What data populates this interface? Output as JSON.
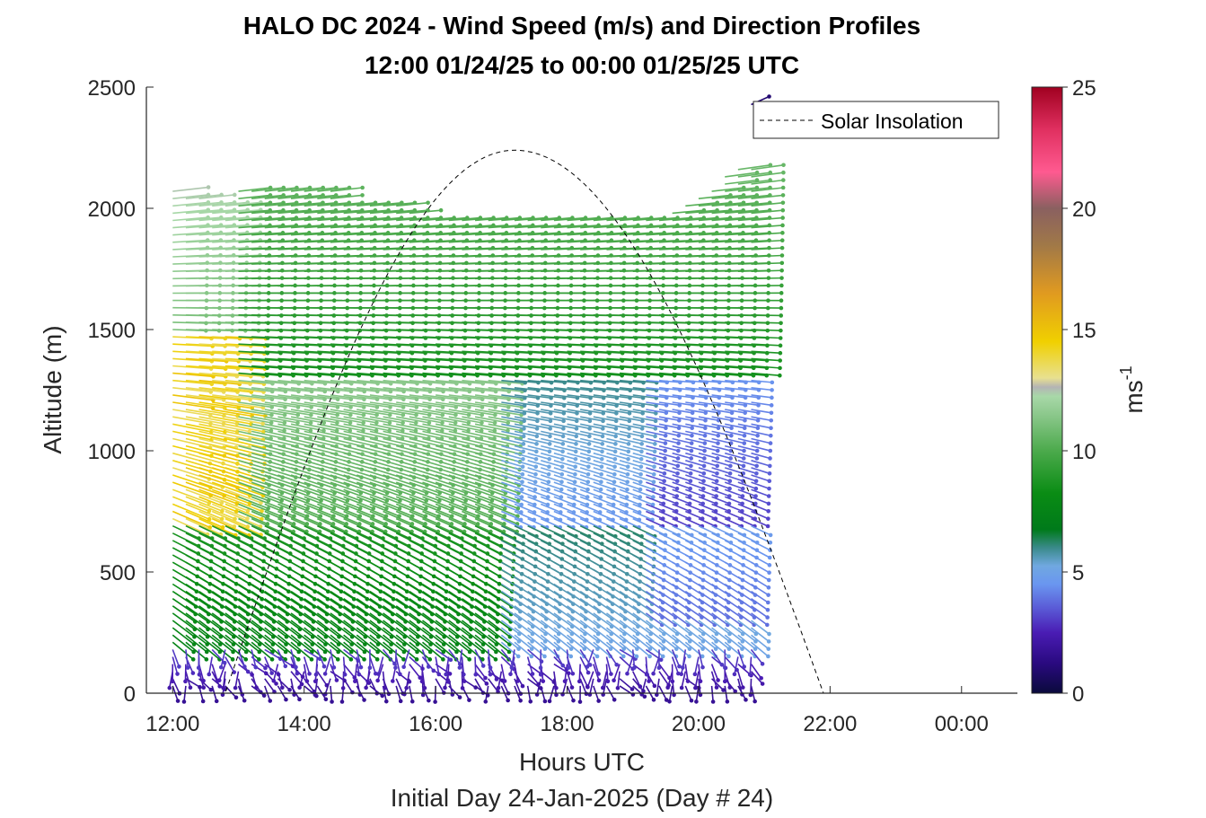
{
  "chart_data": {
    "type": "quiver",
    "title": "HALO DC 2024 - Wind Speed (m/s) and Direction Profiles",
    "subtitle": "12:00 01/24/25 to 00:00 01/25/25  UTC",
    "xlabel": "Hours UTC",
    "xlabel2": "Initial Day 24-Jan-2025 (Day # 24)",
    "ylabel": "Altitude (m)",
    "xlim": [
      11.6,
      24.85
    ],
    "ylim": [
      0,
      2500
    ],
    "x_ticks": [
      12,
      14,
      16,
      18,
      20,
      22,
      24
    ],
    "x_tick_labels": [
      "12:00",
      "14:00",
      "16:00",
      "18:00",
      "20:00",
      "22:00",
      "00:00"
    ],
    "y_ticks": [
      0,
      500,
      1000,
      1500,
      2000,
      2500
    ],
    "y_tick_labels": [
      "0",
      "500",
      "1000",
      "1500",
      "2000",
      "2500"
    ],
    "legend": {
      "entries": [
        "Solar Insolation"
      ],
      "placement": "top-right"
    },
    "colorbar": {
      "label": "ms",
      "label_superscript": "-1",
      "range": [
        0,
        25
      ],
      "ticks": [
        0,
        5,
        10,
        15,
        20,
        25
      ],
      "tick_labels": [
        "0",
        "5",
        "10",
        "15",
        "20",
        "25"
      ]
    },
    "profile_times": [
      12.0,
      12.2,
      12.4,
      12.6,
      12.8,
      13.0,
      13.2,
      13.4,
      13.6,
      13.8,
      14.0,
      14.2,
      14.4,
      14.6,
      14.8,
      15.0,
      15.2,
      15.4,
      15.6,
      15.8,
      16.0,
      16.2,
      16.4,
      16.6,
      16.8,
      17.0,
      17.2,
      17.4,
      17.6,
      17.8,
      18.0,
      18.2,
      18.4,
      18.6,
      18.8,
      19.0,
      19.2,
      19.4,
      19.6,
      19.8,
      20.0,
      20.2,
      20.4,
      20.6,
      20.8
    ],
    "altitude_bins_m": {
      "start": 30,
      "step": 30
    },
    "max_profile_altitude_m": [
      2090,
      2040,
      2040,
      2010,
      2010,
      2090,
      2090,
      2090,
      2090,
      2090,
      2090,
      2090,
      2090,
      2010,
      2010,
      2010,
      2010,
      2010,
      1980,
      1950,
      1950,
      1950,
      1950,
      1950,
      1950,
      1950,
      1950,
      1950,
      1950,
      1950,
      1950,
      1950,
      1950,
      1950,
      1950,
      1950,
      1950,
      1950,
      1980,
      2010,
      2040,
      2070,
      2130,
      2160,
      2160
    ],
    "isolated_vectors": [
      {
        "time": 20.8,
        "altitude_m": 2450,
        "speed_ms": 1
      }
    ],
    "wind_speed_summary": [
      {
        "altitude_range_m": [
          0,
          200
        ],
        "speed_ms": [
          1,
          4
        ],
        "direction": "from north / variable"
      },
      {
        "altitude_range_m": [
          200,
          700
        ],
        "speed_ms": [
          5,
          9
        ],
        "direction": "from north-northwest"
      },
      {
        "altitude_range_m": [
          700,
          1300
        ],
        "speed_ms": [
          3,
          11
        ],
        "direction": "from northwest"
      },
      {
        "altitude_range_m": [
          1300,
          2100
        ],
        "speed_ms": [
          7,
          14
        ],
        "direction": "from west"
      }
    ],
    "solar_insolation": {
      "style": "dashed",
      "color": "#000000",
      "sunrise_hour": 12.8,
      "peak_hour": 17.2,
      "sunset_hour": 21.9,
      "peak_plotted_value": 2240
    }
  }
}
